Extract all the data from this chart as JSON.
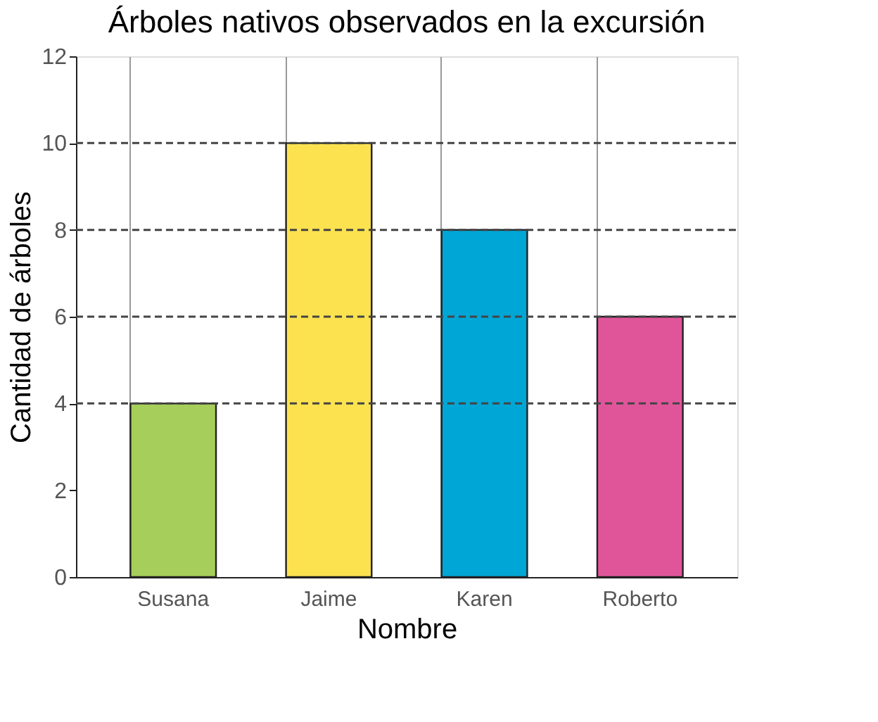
{
  "chart_data": {
    "type": "bar",
    "title": "Árboles nativos observados en la excursión",
    "xlabel": "Nombre",
    "ylabel": "Cantidad de árboles",
    "categories": [
      "Susana",
      "Jaime",
      "Karen",
      "Roberto"
    ],
    "values": [
      4,
      10,
      8,
      6
    ],
    "colors": [
      "#a6ce5a",
      "#fde24f",
      "#00a6d6",
      "#e0559a"
    ],
    "ylim": [
      0,
      12
    ],
    "yticks": [
      0,
      2,
      4,
      6,
      8,
      10,
      12
    ],
    "grid": "x",
    "ref_lines": [
      {
        "axis": "y",
        "value": 4,
        "line_style": "dashed",
        "color": "#444444"
      },
      {
        "axis": "y",
        "value": 6,
        "line_style": "dashed",
        "color": "#444444"
      },
      {
        "axis": "y",
        "value": 8,
        "line_style": "dashed",
        "color": "#444444"
      },
      {
        "axis": "y",
        "value": 10,
        "line_style": "dashed",
        "color": "#444444"
      }
    ]
  }
}
